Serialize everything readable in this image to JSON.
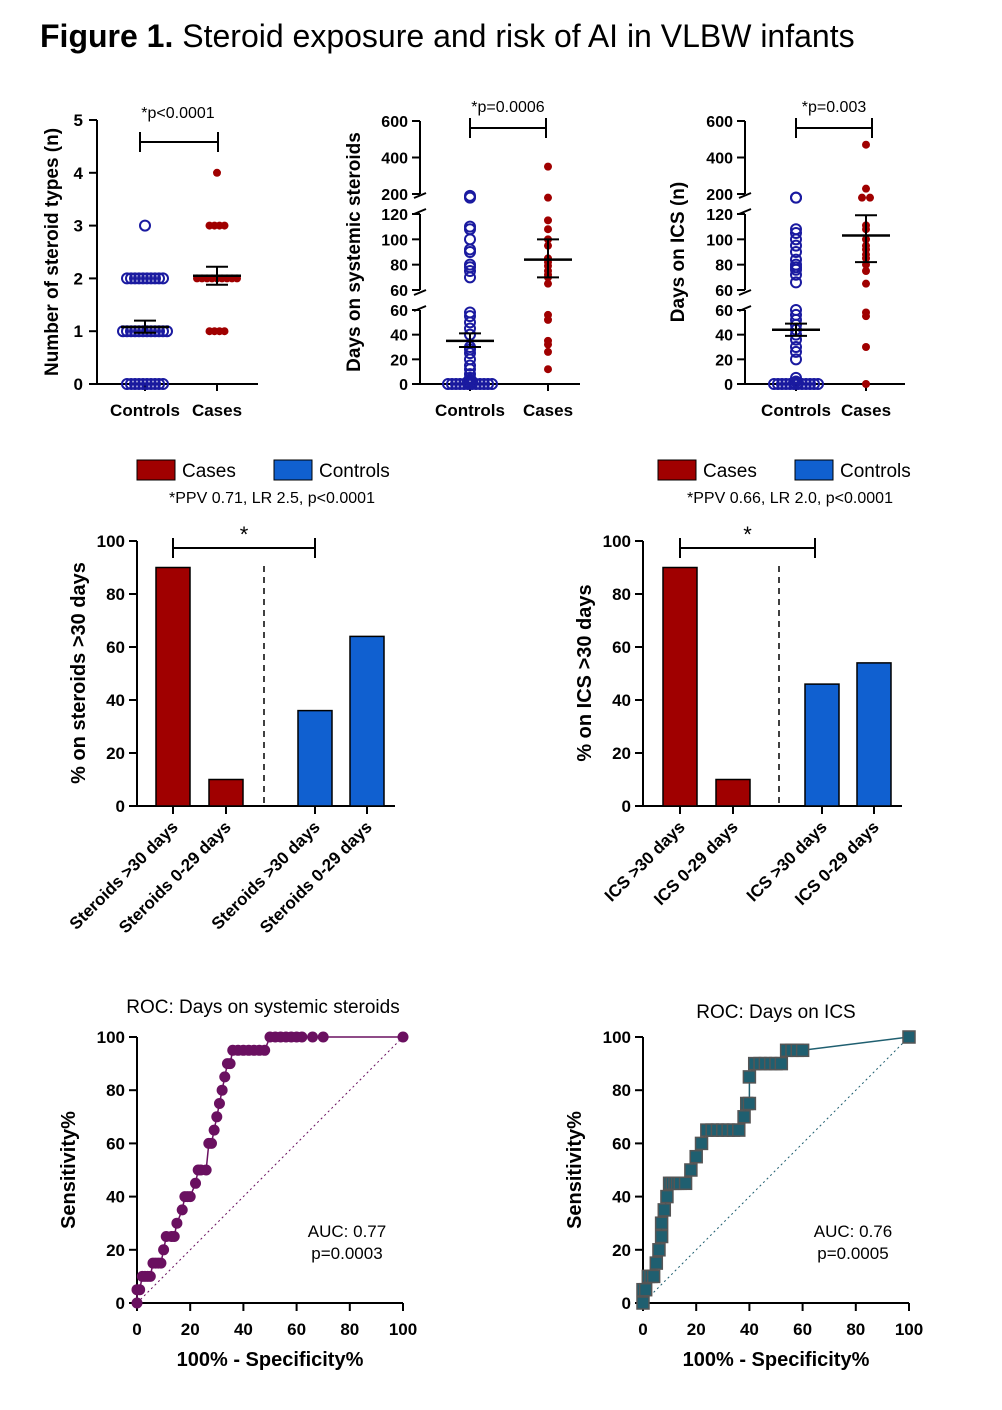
{
  "figure": {
    "title_bold": "Figure 1.",
    "title_rest": " Steroid exposure and risk of  AI in VLBW infants"
  },
  "colors": {
    "cases_red": "#a00000",
    "controls_navy": "#1a1aa0",
    "controls_blue": "#1060d0",
    "roc_purple": "#6a1060",
    "roc_teal": "#1f5f70"
  },
  "chart_data": [
    {
      "id": "panelA",
      "type": "scatter",
      "ylabel": "Number of steroid types (n)",
      "categories": [
        "Controls",
        "Cases"
      ],
      "yticks": [
        "0",
        "1",
        "2",
        "3",
        "4",
        "5"
      ],
      "ylim": [
        0,
        5
      ],
      "annotation": "*p<0.0001",
      "series": [
        {
          "name": "Controls",
          "values": [
            0,
            0,
            0,
            0,
            0,
            0,
            0,
            0,
            0,
            0,
            1,
            1,
            1,
            1,
            1,
            1,
            1,
            1,
            1,
            1,
            1,
            1,
            2,
            2,
            2,
            2,
            2,
            2,
            2,
            2,
            2,
            2,
            3
          ],
          "mean": 1.08,
          "sem_low": 0.97,
          "sem_high": 1.2
        },
        {
          "name": "Cases",
          "values": [
            1,
            1,
            1,
            1,
            2,
            2,
            2,
            2,
            2,
            2,
            2,
            2,
            2,
            3,
            3,
            3,
            3,
            4
          ],
          "mean": 2.05,
          "sem_low": 1.88,
          "sem_high": 2.22
        }
      ]
    },
    {
      "id": "panelB",
      "type": "scatter",
      "ylabel": "Days on systemic steroids",
      "categories": [
        "Controls",
        "Cases"
      ],
      "yticks_low": [
        "0",
        "20",
        "40",
        "60"
      ],
      "yticks_mid": [
        "60",
        "80",
        "100",
        "120"
      ],
      "yticks_high": [
        "200",
        "400",
        "600"
      ],
      "annotation": "*p=0.0006",
      "series": [
        {
          "name": "Controls",
          "values": [
            0,
            0,
            0,
            0,
            0,
            0,
            0,
            0,
            0,
            0,
            0,
            0,
            1,
            1,
            2,
            2,
            3,
            5,
            8,
            12,
            15,
            20,
            25,
            28,
            30,
            40,
            45,
            50,
            55,
            58,
            70,
            75,
            78,
            80,
            90,
            92,
            100,
            108,
            110,
            180,
            190
          ],
          "mean": 35,
          "sem_low": 30,
          "sem_high": 41
        },
        {
          "name": "Cases",
          "values": [
            12,
            26,
            32,
            35,
            52,
            56,
            65,
            70,
            72,
            75,
            79,
            82,
            85,
            95,
            100,
            108,
            115,
            150,
            350
          ],
          "mean": 84,
          "sem_low": 70,
          "sem_high": 100
        }
      ]
    },
    {
      "id": "panelC",
      "type": "scatter",
      "ylabel": "Days on ICS (n)",
      "categories": [
        "Controls",
        "Cases"
      ],
      "yticks_low": [
        "0",
        "20",
        "40",
        "60"
      ],
      "yticks_mid": [
        "60",
        "80",
        "100",
        "120"
      ],
      "yticks_high": [
        "200",
        "400",
        "600"
      ],
      "annotation": "*p=0.003",
      "series": [
        {
          "name": "Controls",
          "values": [
            0,
            0,
            0,
            0,
            0,
            0,
            0,
            0,
            0,
            0,
            0,
            0,
            1,
            1,
            2,
            5,
            20,
            26,
            30,
            36,
            40,
            44,
            48,
            52,
            56,
            60,
            66,
            72,
            76,
            78,
            80,
            84,
            90,
            95,
            100,
            105,
            108,
            150,
            155
          ],
          "mean": 44,
          "sem_low": 39,
          "sem_high": 49
        },
        {
          "name": "Cases",
          "values": [
            0,
            30,
            55,
            58,
            65,
            75,
            80,
            85,
            88,
            92,
            95,
            100,
            108,
            111,
            140,
            150,
            150,
            470
          ],
          "mean": 103,
          "sem_low": 82,
          "sem_high": 119
        }
      ]
    },
    {
      "id": "panelD",
      "type": "bar",
      "legend": [
        "Cases",
        "Controls"
      ],
      "annotation": "*PPV 0.71, LR 2.5, p<0.0001",
      "star": "*",
      "ylabel": "% on steroids >30 days",
      "categories": [
        "Steroids >30 days",
        "Steroids 0-29 days",
        "Steroids >30 days",
        "Steroids 0-29 days"
      ],
      "values": [
        90,
        10,
        36,
        64
      ],
      "groups": [
        "Cases",
        "Cases",
        "Controls",
        "Controls"
      ],
      "yticks": [
        "0",
        "20",
        "40",
        "60",
        "80",
        "100"
      ],
      "ylim": [
        0,
        100
      ]
    },
    {
      "id": "panelE",
      "type": "bar",
      "legend": [
        "Cases",
        "Controls"
      ],
      "annotation": "*PPV 0.66, LR 2.0, p<0.0001",
      "star": "*",
      "ylabel": "% on ICS >30 days",
      "categories": [
        "ICS >30 days",
        "ICS 0-29 days",
        "ICS >30 days",
        "ICS 0-29 days"
      ],
      "values": [
        90,
        10,
        46,
        54
      ],
      "groups": [
        "Cases",
        "Cases",
        "Controls",
        "Controls"
      ],
      "yticks": [
        "0",
        "20",
        "40",
        "60",
        "80",
        "100"
      ],
      "ylim": [
        0,
        100
      ]
    },
    {
      "id": "panelF",
      "type": "line",
      "title": "ROC:  Days on systemic steroids",
      "xlabel": "100% - Specificity%",
      "ylabel": "Sensitivity%",
      "xticks": [
        "0",
        "20",
        "40",
        "60",
        "80",
        "100"
      ],
      "yticks": [
        "0",
        "20",
        "40",
        "60",
        "80",
        "100"
      ],
      "xlim": [
        0,
        100
      ],
      "ylim": [
        0,
        100
      ],
      "auc_text": "AUC: 0.77",
      "p_text": "p=0.0003",
      "x": [
        0,
        0,
        1,
        2,
        3,
        4,
        5,
        6,
        7,
        8,
        9,
        10,
        11,
        13,
        14,
        15,
        17,
        18,
        19,
        20,
        22,
        23,
        24,
        26,
        27,
        28,
        29,
        30,
        31,
        32,
        33,
        34,
        35,
        36,
        38,
        40,
        42,
        44,
        46,
        48,
        50,
        52,
        54,
        56,
        58,
        60,
        62,
        66,
        70,
        100
      ],
      "y": [
        0,
        5,
        5,
        10,
        10,
        10,
        10,
        15,
        15,
        15,
        15,
        20,
        25,
        25,
        25,
        30,
        35,
        40,
        40,
        40,
        45,
        50,
        50,
        50,
        60,
        60,
        65,
        70,
        75,
        80,
        85,
        90,
        90,
        95,
        95,
        95,
        95,
        95,
        95,
        95,
        100,
        100,
        100,
        100,
        100,
        100,
        100,
        100,
        100,
        100
      ]
    },
    {
      "id": "panelG",
      "type": "line",
      "title": "ROC:  Days on ICS",
      "xlabel": "100% - Specificity%",
      "ylabel": "Sensitivity%",
      "xticks": [
        "0",
        "20",
        "40",
        "60",
        "80",
        "100"
      ],
      "yticks": [
        "0",
        "20",
        "40",
        "60",
        "80",
        "100"
      ],
      "xlim": [
        0,
        100
      ],
      "ylim": [
        0,
        100
      ],
      "auc_text": "AUC: 0.76",
      "p_text": "p=0.0005",
      "x": [
        0,
        0,
        1,
        2,
        3,
        4,
        5,
        6,
        7,
        7,
        8,
        9,
        10,
        11,
        12,
        13,
        14,
        16,
        18,
        20,
        22,
        24,
        26,
        28,
        30,
        32,
        34,
        36,
        38,
        39,
        40,
        40,
        42,
        44,
        46,
        48,
        50,
        52,
        54,
        56,
        58,
        60,
        100
      ],
      "y": [
        0,
        5,
        5,
        10,
        10,
        10,
        15,
        20,
        25,
        30,
        35,
        40,
        45,
        45,
        45,
        45,
        45,
        45,
        50,
        55,
        60,
        65,
        65,
        65,
        65,
        65,
        65,
        65,
        70,
        75,
        75,
        85,
        90,
        90,
        90,
        90,
        90,
        90,
        95,
        95,
        95,
        95,
        100
      ]
    }
  ]
}
